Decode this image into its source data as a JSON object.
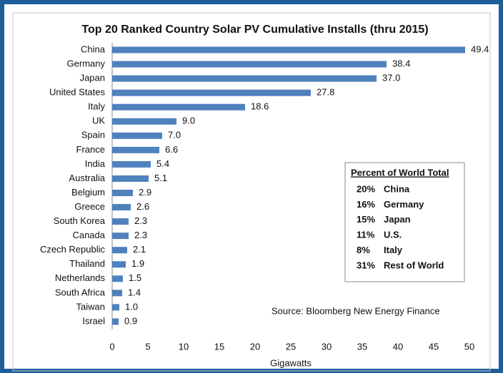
{
  "chart_data": {
    "type": "hbar",
    "title": "Top 20 Ranked Country Solar PV Cumulative Installs (thru 2015)",
    "xlabel": "Gigawatts",
    "categories": [
      "China",
      "Germany",
      "Japan",
      "United States",
      "Italy",
      "UK",
      "Spain",
      "France",
      "India",
      "Australia",
      "Belgium",
      "Greece",
      "South Korea",
      "Canada",
      "Czech Republic",
      "Thailand",
      "Netherlands",
      "South Africa",
      "Taiwan",
      "Israel"
    ],
    "values": [
      49.4,
      38.4,
      37.0,
      27.8,
      18.6,
      9.0,
      7.0,
      6.6,
      5.4,
      5.1,
      2.9,
      2.6,
      2.3,
      2.3,
      2.1,
      1.9,
      1.5,
      1.4,
      1.0,
      0.9
    ],
    "value_labels": [
      "49.4",
      "38.4",
      "37.0",
      "27.8",
      "18.6",
      "9.0",
      "7.0",
      "6.6",
      "5.4",
      "5.1",
      "2.9",
      "2.6",
      "2.3",
      "2.3",
      "2.1",
      "1.9",
      "1.5",
      "1.4",
      "1.0",
      "0.9"
    ],
    "color": "#4f81bd",
    "xlim": [
      0,
      50
    ],
    "xticks": [
      0,
      5,
      10,
      15,
      20,
      25,
      30,
      35,
      40,
      45,
      50
    ],
    "grid": false,
    "annotation": "Source:  Bloomberg New Energy Finance",
    "inset": {
      "title": "Percent of World Total",
      "rows": [
        {
          "percent": "20%",
          "label": "China"
        },
        {
          "percent": "16%",
          "label": "Germany"
        },
        {
          "percent": "15%",
          "label": "Japan"
        },
        {
          "percent": "11%",
          "label": "U.S."
        },
        {
          "percent": "8%",
          "label": "Italy"
        },
        {
          "percent": "31%",
          "label": "Rest of World"
        }
      ]
    }
  }
}
